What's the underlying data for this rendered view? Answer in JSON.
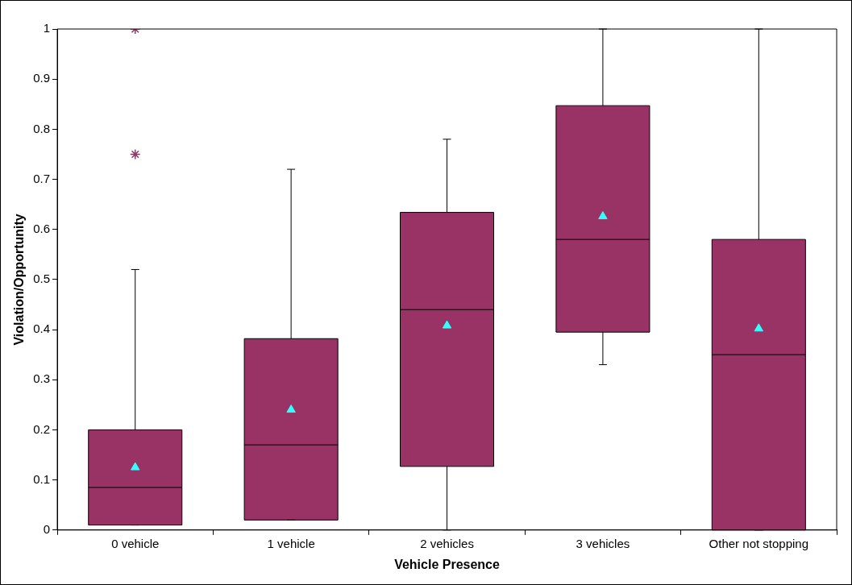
{
  "chart_data": {
    "type": "box",
    "xlabel": "Vehicle Presence",
    "ylabel": "Violation/Opportunity",
    "categories": [
      "0 vehicle",
      "1 vehicle",
      "2 vehicles",
      "3 vehicles",
      "Other not stopping"
    ],
    "ylim": [
      0,
      1
    ],
    "yticks": [
      0,
      0.1,
      0.2,
      0.3,
      0.4,
      0.5,
      0.6,
      0.7,
      0.8,
      0.9,
      1
    ],
    "grid": false,
    "legend": false,
    "marker": "triangle",
    "series": [
      {
        "color": "#993366",
        "boxes": [
          {
            "low": 0.01,
            "q1": 0.01,
            "median": 0.085,
            "q3": 0.2,
            "high": 0.52,
            "mean": 0.125,
            "outliers": [
              0.75,
              1
            ]
          },
          {
            "low": 0.02,
            "q1": 0.02,
            "median": 0.17,
            "q3": 0.382,
            "high": 0.72,
            "mean": 0.24
          },
          {
            "low": 0,
            "q1": 0.127,
            "median": 0.44,
            "q3": 0.634,
            "high": 0.78,
            "mean": 0.408
          },
          {
            "low": 0.33,
            "q1": 0.395,
            "median": 0.58,
            "q3": 0.847,
            "high": 1,
            "mean": 0.626
          },
          {
            "low": 0,
            "q1": 0,
            "median": 0.35,
            "q3": 0.58,
            "high": 1,
            "mean": 0.402
          }
        ]
      }
    ]
  }
}
